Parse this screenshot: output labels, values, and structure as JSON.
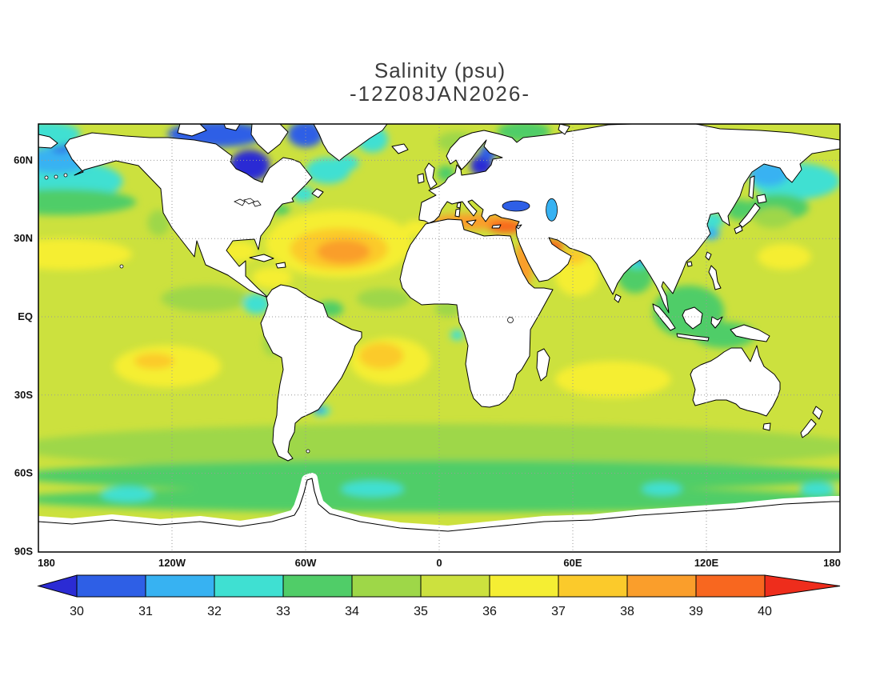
{
  "title": {
    "line1": "Salinity (psu)",
    "line2": "-12Z08JAN2026-"
  },
  "axes": {
    "lat_ticks": [
      {
        "label": "60N",
        "lat": 60
      },
      {
        "label": "30N",
        "lat": 30
      },
      {
        "label": "EQ",
        "lat": 0
      },
      {
        "label": "30S",
        "lat": -30
      },
      {
        "label": "60S",
        "lat": -60
      },
      {
        "label": "90S",
        "lat": -90
      }
    ],
    "lon_ticks": [
      {
        "label": "180",
        "lon": -180
      },
      {
        "label": "120W",
        "lon": -120
      },
      {
        "label": "60W",
        "lon": -60
      },
      {
        "label": "0",
        "lon": 0
      },
      {
        "label": "60E",
        "lon": 60
      },
      {
        "label": "120E",
        "lon": 120
      },
      {
        "label": "180",
        "lon": 180
      }
    ],
    "grid_lats": [
      60,
      30,
      0,
      -30,
      -60
    ],
    "grid_lons": [
      -120,
      -60,
      0,
      60,
      120
    ]
  },
  "colorbar": {
    "labels": [
      "30",
      "31",
      "32",
      "33",
      "34",
      "35",
      "36",
      "37",
      "38",
      "39",
      "40"
    ],
    "palette": [
      {
        "max": 30,
        "color": "#2b2bd4"
      },
      {
        "min": 30,
        "max": 31,
        "color": "#2e5fe6"
      },
      {
        "min": 31,
        "max": 32,
        "color": "#37b2f2"
      },
      {
        "min": 32,
        "max": 33,
        "color": "#3fe0d2"
      },
      {
        "min": 33,
        "max": 34,
        "color": "#50cd68"
      },
      {
        "min": 34,
        "max": 35,
        "color": "#9ed748"
      },
      {
        "min": 35,
        "max": 36,
        "color": "#cce13e"
      },
      {
        "min": 36,
        "max": 37,
        "color": "#f5ee33"
      },
      {
        "min": 37,
        "max": 38,
        "color": "#fbca2b"
      },
      {
        "min": 38,
        "max": 39,
        "color": "#fa9e2b"
      },
      {
        "min": 39,
        "max": 40,
        "color": "#f8671f"
      },
      {
        "min": 40,
        "color": "#ee2d1c"
      }
    ]
  },
  "chart_data": {
    "type": "heatmap",
    "title": "Salinity (psu)",
    "variable": "Salinity",
    "units": "psu",
    "valid_time": "12Z08JAN2026",
    "lon_range": [
      -180,
      180
    ],
    "lat_range": [
      -90,
      74
    ],
    "levels": [
      30,
      31,
      32,
      33,
      34,
      35,
      36,
      37,
      38,
      39,
      40
    ],
    "background_psu": 35.5,
    "field_regions": [
      {
        "name": "southern-ocean-band",
        "lon": 0,
        "lat": -50,
        "rlon": 190,
        "rlat": 9,
        "psu": 34.5
      },
      {
        "name": "subantarctic-band",
        "lon": 0,
        "lat": -61,
        "rlon": 190,
        "rlat": 6,
        "psu": 33.6
      },
      {
        "name": "antarctic-coastal-band",
        "lon": 0,
        "lat": -70,
        "rlon": 190,
        "rlat": 5,
        "psu": 33.6
      },
      {
        "name": "weddell-fresh-patch",
        "lon": -30,
        "lat": -66,
        "rlon": 14,
        "rlat": 3,
        "psu": 32.5
      },
      {
        "name": "ross-fresh-patch",
        "lon": -140,
        "lat": -68,
        "rlon": 12,
        "rlat": 3,
        "psu": 32.5
      },
      {
        "name": "east-antarctic-fresh-patch",
        "lon": 100,
        "lat": -66,
        "rlon": 9,
        "rlat": 2.5,
        "psu": 32.7
      },
      {
        "name": "adelie-fresh-patch",
        "lon": 170,
        "lat": -66,
        "rlon": 8,
        "rlat": 2.5,
        "psu": 32.7
      },
      {
        "name": "north-pacific-subpolar-east",
        "lon": -170,
        "lat": 52,
        "rlon": 28,
        "rlat": 8,
        "psu": 32.5
      },
      {
        "name": "north-pacific-subpolar-west",
        "lon": 160,
        "lat": 52,
        "rlon": 20,
        "rlat": 7,
        "psu": 32.5
      },
      {
        "name": "north-pacific-transition-east",
        "lon": -170,
        "lat": 44,
        "rlon": 34,
        "rlat": 5,
        "psu": 33.6
      },
      {
        "name": "north-pacific-transition-west",
        "lon": 152,
        "lat": 42,
        "rlon": 14,
        "rlat": 5,
        "psu": 33.6
      },
      {
        "name": "bering-sea",
        "lon": -172,
        "lat": 60,
        "rlon": 16,
        "rlat": 5,
        "psu": 31.5
      },
      {
        "name": "bering-strait-fresh",
        "lon": -170,
        "lat": 66,
        "rlon": 5,
        "rlat": 3,
        "psu": 30.5
      },
      {
        "name": "chukchi-arctic",
        "lon": -177,
        "lat": 70,
        "rlon": 16,
        "rlat": 5,
        "psu": 32.3
      },
      {
        "name": "sea-of-okhotsk",
        "lon": 148,
        "lat": 55,
        "rlon": 9,
        "rlat": 5,
        "psu": 31.6
      },
      {
        "name": "kuroshio-extension",
        "lon": 150,
        "lat": 38,
        "rlon": 9,
        "rlat": 4,
        "psu": 34.4
      },
      {
        "name": "california-current",
        "lon": -126,
        "lat": 36,
        "rlon": 5,
        "rlat": 5,
        "psu": 34.4
      },
      {
        "name": "labrador-sea",
        "lon": -50,
        "lat": 56,
        "rlon": 10,
        "rlat": 5,
        "psu": 32.5
      },
      {
        "name": "irminger-fresh",
        "lon": -42,
        "lat": 59,
        "rlon": 6,
        "rlat": 3,
        "psu": 32.8
      },
      {
        "name": "baffin-bay",
        "lon": -60,
        "lat": 70,
        "rlon": 8,
        "rlat": 5,
        "psu": 30.2
      },
      {
        "name": "hudson-bay",
        "lon": -85,
        "lat": 58,
        "rlon": 9,
        "rlat": 6,
        "psu": 29.5
      },
      {
        "name": "canadian-arctic",
        "lon": -100,
        "lat": 70,
        "rlon": 22,
        "rlat": 5,
        "psu": 30.4
      },
      {
        "name": "east-greenland-current",
        "lon": -30,
        "lat": 68,
        "rlon": 7,
        "rlat": 5,
        "psu": 32.5
      },
      {
        "name": "gulf-of-st-lawrence",
        "lon": -61,
        "lat": 47,
        "rlon": 5,
        "rlat": 3,
        "psu": 32.5
      },
      {
        "name": "us-northeast-shelf",
        "lon": -71,
        "lat": 41,
        "rlon": 4,
        "rlat": 2,
        "psu": 33.6
      },
      {
        "name": "baltic-sea",
        "lon": 19,
        "lat": 58,
        "rlon": 5,
        "rlat": 4,
        "psu": 29.0
      },
      {
        "name": "gulf-of-bothnia",
        "lon": 22,
        "lat": 63,
        "rlon": 4,
        "rlat": 3,
        "psu": 30.3
      },
      {
        "name": "north-sea",
        "lon": 3,
        "lat": 55,
        "rlon": 4,
        "rlat": 3,
        "psu": 33.8
      },
      {
        "name": "norwegian-sea",
        "lon": 8,
        "lat": 67,
        "rlon": 9,
        "rlat": 4,
        "psu": 34.6
      },
      {
        "name": "barents-sea",
        "lon": 38,
        "lat": 71,
        "rlon": 12,
        "rlat": 4,
        "psu": 33.8
      },
      {
        "name": "north-atlantic-salinity-max-outer",
        "lon": -45,
        "lat": 28,
        "rlon": 33,
        "rlat": 13,
        "psu": 36.5
      },
      {
        "name": "north-atlantic-salinity-max",
        "lon": -45,
        "lat": 26,
        "rlon": 22,
        "rlat": 8,
        "psu": 37.4
      },
      {
        "name": "north-atlantic-salinity-core",
        "lon": -43,
        "lat": 25,
        "rlon": 12,
        "rlat": 4.5,
        "psu": 38.3
      },
      {
        "name": "gulf-of-cadiz",
        "lon": -10,
        "lat": 34,
        "rlon": 6,
        "rlat": 3,
        "psu": 36.4
      },
      {
        "name": "gulf-of-mexico",
        "lon": -90,
        "lat": 25,
        "rlon": 8,
        "rlat": 4,
        "psu": 36.3
      },
      {
        "name": "caribbean-sea",
        "lon": -75,
        "lat": 15,
        "rlon": 9,
        "rlat": 4,
        "psu": 36.2
      },
      {
        "name": "mediterranean-sea",
        "lon": 15,
        "lat": 36.5,
        "rlon": 20,
        "rlat": 3,
        "psu": 38.3
      },
      {
        "name": "eastern-mediterranean",
        "lon": 30,
        "lat": 34.5,
        "rlon": 8,
        "rlat": 2.5,
        "psu": 39.5
      },
      {
        "name": "red-sea",
        "lon": 38,
        "lat": 20,
        "rlon": 4,
        "rlat": 9,
        "psu": 38.5
      },
      {
        "name": "persian-gulf",
        "lon": 51,
        "lat": 27,
        "rlon": 5,
        "rlat": 2.5,
        "psu": 39.3
      },
      {
        "name": "arabian-sea",
        "lon": 62,
        "lat": 16,
        "rlon": 10,
        "rlat": 8,
        "psu": 36.4
      },
      {
        "name": "gulf-of-oman",
        "lon": 60,
        "lat": 23,
        "rlon": 6,
        "rlat": 3,
        "psu": 37.2
      },
      {
        "name": "south-atlantic-salinity-max-outer",
        "lon": -22,
        "lat": -17,
        "rlon": 18,
        "rlat": 9,
        "psu": 36.5
      },
      {
        "name": "south-atlantic-salinity-max",
        "lon": -26,
        "lat": -15,
        "rlon": 10,
        "rlat": 5,
        "psu": 37.4
      },
      {
        "name": "south-pacific-salinity-max",
        "lon": -122,
        "lat": -19,
        "rlon": 24,
        "rlat": 8,
        "psu": 36.3
      },
      {
        "name": "south-pacific-salinity-core",
        "lon": -128,
        "lat": -17,
        "rlon": 9,
        "rlat": 3,
        "psu": 37.2
      },
      {
        "name": "south-indian-salinity-max",
        "lon": 78,
        "lat": -24,
        "rlon": 26,
        "rlat": 7,
        "psu": 36.3
      },
      {
        "name": "north-pacific-salinity-max-east",
        "lon": -168,
        "lat": 24,
        "rlon": 30,
        "rlat": 6,
        "psu": 36.3
      },
      {
        "name": "north-pacific-salinity-max-west",
        "lon": 155,
        "lat": 23,
        "rlon": 12,
        "rlat": 5,
        "psu": 36.2
      },
      {
        "name": "atlantic-itcz-fresh",
        "lon": -25,
        "lat": 7,
        "rlon": 12,
        "rlat": 4,
        "psu": 34.8
      },
      {
        "name": "eastern-pacific-fresh-pool",
        "lon": -105,
        "lat": 7,
        "rlon": 20,
        "rlat": 5,
        "psu": 34.4
      },
      {
        "name": "panama-bight",
        "lon": -82,
        "lat": 5,
        "rlon": 6,
        "rlat": 4,
        "psu": 32.6
      },
      {
        "name": "amazon-plume",
        "lon": -49,
        "lat": 3,
        "rlon": 6,
        "rlat": 3,
        "psu": 33.6
      },
      {
        "name": "gulf-of-guinea",
        "lon": 4,
        "lat": 3,
        "rlon": 6,
        "rlat": 3,
        "psu": 34.3
      },
      {
        "name": "congo-plume",
        "lon": 8,
        "lat": -7,
        "rlon": 3,
        "rlat": 2,
        "psu": 32.8
      },
      {
        "name": "peru-coastal",
        "lon": -75,
        "lat": -10,
        "rlon": 4,
        "rlat": 5,
        "psu": 34.5
      },
      {
        "name": "bay-of-bengal",
        "lon": 88,
        "lat": 16,
        "rlon": 8,
        "rlat": 7,
        "psu": 33.6
      },
      {
        "name": "ganges-delta",
        "lon": 89,
        "lat": 21,
        "rlon": 5,
        "rlat": 2.5,
        "psu": 32.3
      },
      {
        "name": "ganges-mouth",
        "lon": 91,
        "lat": 22,
        "rlon": 2.5,
        "rlat": 1.5,
        "psu": 30.5
      },
      {
        "name": "maritime-continent",
        "lon": 112,
        "lat": 2,
        "rlon": 16,
        "rlat": 10,
        "psu": 33.9
      },
      {
        "name": "banda-arafura",
        "lon": 128,
        "lat": -7,
        "rlon": 14,
        "rlat": 5,
        "psu": 33.9
      },
      {
        "name": "china-coastal",
        "lon": 122,
        "lat": 32,
        "rlon": 4,
        "rlat": 2.5,
        "psu": 31.8
      },
      {
        "name": "yellow-sea",
        "lon": 123,
        "lat": 37,
        "rlon": 5,
        "rlat": 3,
        "psu": 32.6
      },
      {
        "name": "sea-of-japan",
        "lon": 135,
        "lat": 41,
        "rlon": 6,
        "rlat": 4,
        "psu": 33.9
      },
      {
        "name": "rio-de-la-plata",
        "lon": -53,
        "lat": -36,
        "rlon": 4,
        "rlat": 2,
        "psu": 32.0
      },
      {
        "name": "plata-mouth",
        "lon": -54,
        "lat": -35.5,
        "rlon": 1.8,
        "rlat": 1.2,
        "psu": 30.3
      }
    ],
    "inland_seas": [
      {
        "name": "black-sea",
        "lon": 34.5,
        "lat": 42.5,
        "rlon": 6.1,
        "rlat": 2.0,
        "psu": 30.5
      },
      {
        "name": "caspian-sea",
        "lon": 50.5,
        "lat": 41.0,
        "rlon": 2.5,
        "rlat": 4.3,
        "psu": 31.5
      }
    ]
  }
}
